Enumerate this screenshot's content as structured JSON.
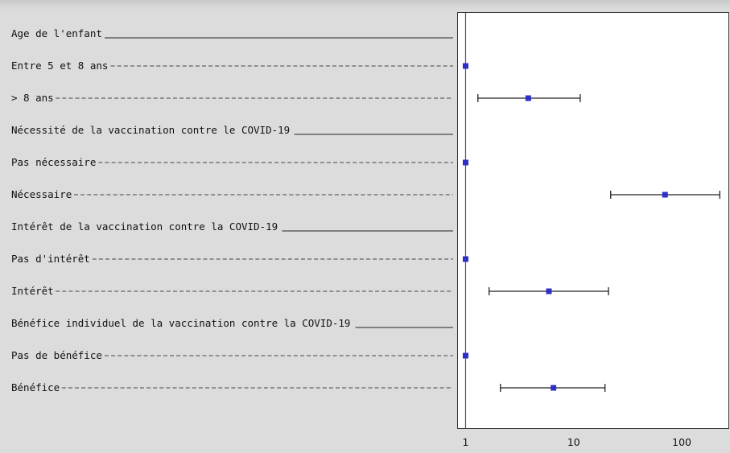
{
  "chart_data": {
    "type": "forest",
    "x_scale": "log",
    "xlim": [
      0.85,
      270
    ],
    "x_ticks": [
      {
        "value": 1,
        "label": "1"
      },
      {
        "value": 10,
        "label": "10"
      },
      {
        "value": 100,
        "label": "100"
      }
    ],
    "reference_value": 1,
    "rows": [
      {
        "label": "Age de l'enfant",
        "kind": "header"
      },
      {
        "label": "Entre 5 et 8 ans",
        "kind": "reference",
        "estimate": 1
      },
      {
        "label": "> 8 ans",
        "kind": "estimate",
        "estimate": 3.8,
        "lower": 1.3,
        "upper": 11.5
      },
      {
        "label": "Nécessité de la vaccination contre le COVID-19",
        "kind": "header"
      },
      {
        "label": "Pas nécessaire",
        "kind": "reference",
        "estimate": 1
      },
      {
        "label": "Nécessaire",
        "kind": "estimate",
        "estimate": 70,
        "lower": 22,
        "upper": 225
      },
      {
        "label": "Intérêt de la vaccination contre la COVID-19",
        "kind": "header"
      },
      {
        "label": "Pas d'intérêt",
        "kind": "reference",
        "estimate": 1
      },
      {
        "label": "Intérêt",
        "kind": "estimate",
        "estimate": 5.9,
        "lower": 1.65,
        "upper": 21
      },
      {
        "label": "Bénéfice individuel de la vaccination contre la COVID-19",
        "kind": "header"
      },
      {
        "label": "Pas de bénéfice",
        "kind": "reference",
        "estimate": 1
      },
      {
        "label": "Bénéfice",
        "kind": "estimate",
        "estimate": 6.5,
        "lower": 2.1,
        "upper": 19.5
      }
    ],
    "grid": false,
    "colors": {
      "marker": "#2f2fc8",
      "whisker": "#222222",
      "reference_line": "#555555"
    }
  }
}
